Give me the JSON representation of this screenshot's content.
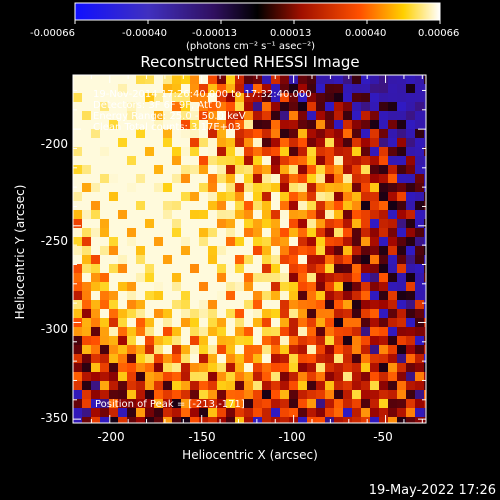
{
  "colorbar": {
    "ticks": [
      "-0.00066",
      "-0.00040",
      "-0.00013",
      "0.00013",
      "0.00040",
      "0.00066"
    ],
    "unit_text": "(photons cm⁻² s⁻¹ asec⁻²)"
  },
  "chart_data": {
    "type": "heatmap",
    "title": "Reconstructed RHESSI Image",
    "xlabel": "Heliocentric X (arcsec)",
    "ylabel": "Heliocentric Y (arcsec)",
    "xlim": [
      -220,
      -28
    ],
    "ylim": [
      -352,
      -172
    ],
    "xticks": [
      -200,
      -150,
      -100,
      -50
    ],
    "yticks": [
      -200,
      -250,
      -300,
      -350
    ],
    "value_range": [
      -0.00066,
      0.00066
    ],
    "colormap": "red-temperature (blue to black to red/yellow/white)",
    "annotations": [
      "19-Nov-2014 17:26:40.000 to 17:32:40.000",
      "Detectors: 3F 6F 9F, Att 0",
      "Energy Range: 25.0 - 50.0 keV",
      "Clean     Total counts: 3.17E+03"
    ],
    "peak_text": "Position of Peak = [-213,-171]"
  },
  "footer": {
    "date": "19-May-2022 17:26"
  }
}
